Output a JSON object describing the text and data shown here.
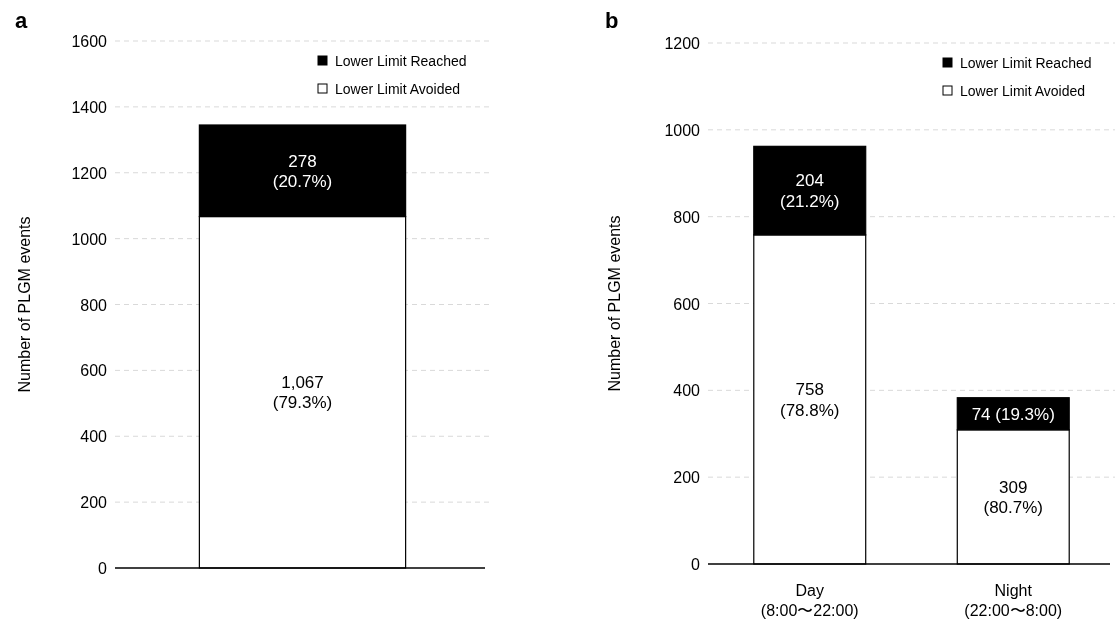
{
  "chart_data": [
    {
      "type": "bar",
      "title": "a",
      "ylabel": "Number of PLGM events",
      "categories": [
        null
      ],
      "stacked": true,
      "legend": "top right",
      "grid": "y",
      "ylim": [
        0,
        1600
      ],
      "yticks": [
        0,
        200,
        400,
        600,
        800,
        1000,
        1200,
        1400,
        1600
      ],
      "series": [
        {
          "name": "Lower Limit Avoided",
          "color": "#ffffff",
          "values": [
            1067
          ],
          "value_labels": [
            "1,067\n(79.3%)"
          ]
        },
        {
          "name": "Lower Limit Reached",
          "color": "#000000",
          "values": [
            278
          ],
          "value_labels": [
            "278\n(20.7%)"
          ]
        }
      ]
    },
    {
      "type": "bar",
      "title": "b",
      "ylabel": "Number of PLGM events",
      "categories": [
        "Day\n(8:00〜22:00)",
        "Night\n(22:00〜8:00)"
      ],
      "stacked": true,
      "legend": "top right",
      "grid": "y",
      "ylim": [
        0,
        1200
      ],
      "yticks": [
        0,
        200,
        400,
        600,
        800,
        1000,
        1200
      ],
      "series": [
        {
          "name": "Lower Limit Avoided",
          "color": "#ffffff",
          "values": [
            758,
            309
          ],
          "value_labels": [
            "758\n(78.8%)",
            "309\n(80.7%)"
          ]
        },
        {
          "name": "Lower Limit Reached",
          "color": "#000000",
          "values": [
            204,
            74
          ],
          "value_labels": [
            "204\n(21.2%)",
            "74 (19.3%)"
          ]
        }
      ]
    }
  ]
}
